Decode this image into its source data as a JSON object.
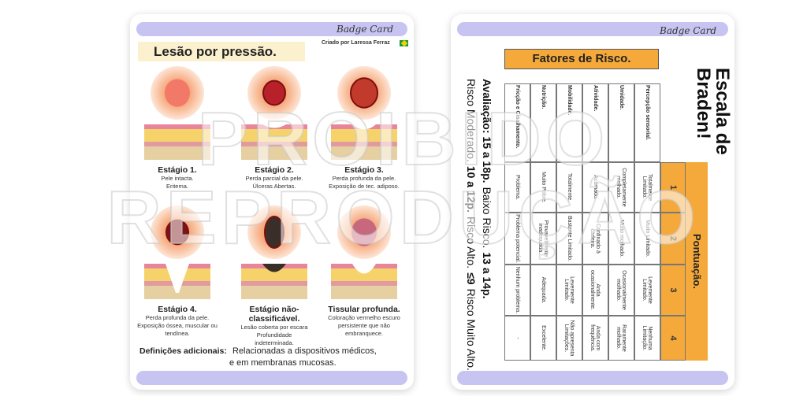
{
  "left_card": {
    "brand": "Badge Card",
    "credit": "Criado por Laressa Ferraz",
    "title": "Lesão por pressão.",
    "stages": [
      {
        "title": "Estágio 1.",
        "lines": [
          "Pele intacta.",
          "Eritema."
        ]
      },
      {
        "title": "Estágio 2.",
        "lines": [
          "Perda parcial da pele.",
          "Úlceras Abertas."
        ]
      },
      {
        "title": "Estágio 3.",
        "lines": [
          "Perda profunda da pele.",
          "Exposição de tec. adiposo."
        ]
      },
      {
        "title": "Estágio 4.",
        "lines": [
          "Perda profunda da pele.",
          "Exposição óssea, muscular ou",
          "tendínea."
        ]
      },
      {
        "title": "Estágio não-classificável.",
        "lines": [
          "Lesão coberta por escara",
          "Profundidade",
          "indeterminada."
        ]
      },
      {
        "title": "Tissular profunda.",
        "lines": [
          "Coloração vermelho escuro",
          "persistente que não",
          "embranquece."
        ]
      }
    ],
    "additional": {
      "label": "Definições adicionais:",
      "lines": [
        "Relacionadas a dispositivos médicos,",
        "e em membranas mucosas."
      ]
    }
  },
  "right_card": {
    "brand": "Badge Card",
    "title_lines": [
      "Escala de",
      "Braden!"
    ],
    "factors_header": "Fatores de Risco.",
    "score_header": "Pontuação.",
    "scores": [
      "1",
      "2",
      "3",
      "4"
    ],
    "rows": [
      {
        "factor": "Percepção sensorial.",
        "cells": [
          "Totalmente Limitado.",
          "Muito Limitado.",
          "Levemente Limitado.",
          "Nenhuma Limitação."
        ]
      },
      {
        "factor": "Umidade.",
        "cells": [
          "Completamente molhado.",
          "Muito molhado.",
          "Ocasionalmente molhado.",
          "Raramente molhado."
        ]
      },
      {
        "factor": "Atividade.",
        "cells": [
          "Acamado.",
          "Confinado à cadeira.",
          "Anda ocasionalmente.",
          "Anda com frequência."
        ]
      },
      {
        "factor": "Mobilidade.",
        "cells": [
          "Totalmente.",
          "Bastante Limitado.",
          "Levemente Limitado.",
          "Não apresenta Limitações."
        ]
      },
      {
        "factor": "Nutrição.",
        "cells": [
          "Muito Pobre.",
          "Provavelmente inadequada.",
          "Adequada.",
          "Excelente."
        ]
      },
      {
        "factor": "Fricção e Cisalhamento.",
        "cells": [
          "Problema.",
          "Problema potencial.",
          "Nenhum problema.",
          "-"
        ]
      }
    ],
    "evaluation": [
      [
        {
          "text": "Avaliação: 15 a 18p.",
          "bold": true
        },
        {
          "text": "Baixo Risco.",
          "bold": false
        },
        {
          "text": "13 a 14p.",
          "bold": true
        }
      ],
      [
        {
          "text": "Risco Moderado.",
          "bold": false
        },
        {
          "text": "10 a 12p.",
          "bold": true
        },
        {
          "text": "Risco Alto.",
          "bold": false
        },
        {
          "text": "≤9",
          "bold": true
        },
        {
          "text": "Risco Muito Alto.",
          "bold": false
        }
      ]
    ]
  },
  "watermark": [
    "PROIBIDO",
    "REPRODUÇÃO"
  ]
}
